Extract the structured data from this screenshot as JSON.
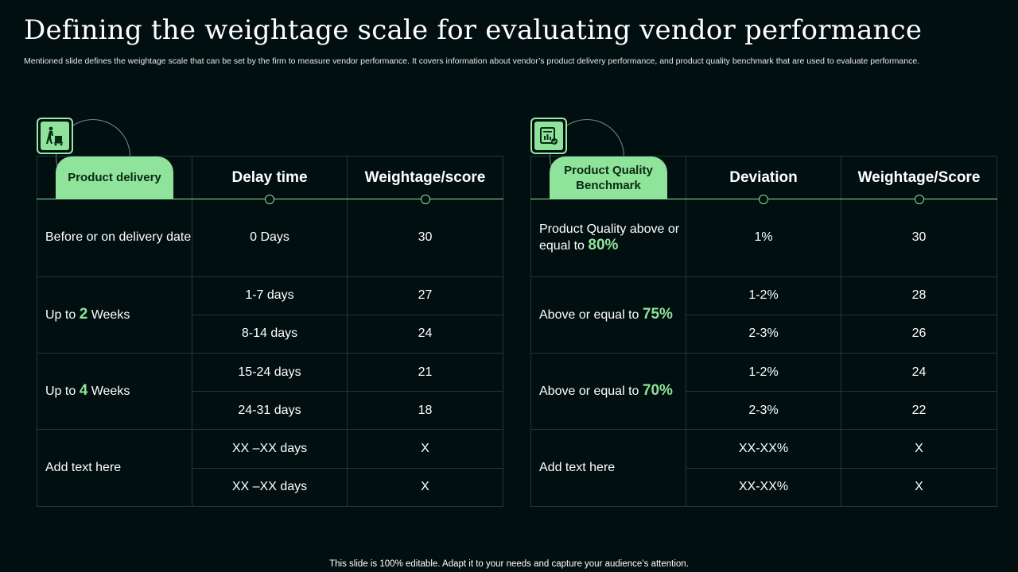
{
  "title": "Defining the weightage scale for evaluating vendor performance",
  "subtitle": "Mentioned slide defines the weightage scale that can be set by the firm to measure vendor performance. It covers information about vendor’s product delivery performance, and product quality benchmark that are used to evaluate performance.",
  "footer": "This slide is 100% editable. Adapt it to your needs and capture your audience’s attention.",
  "colors": {
    "background": "#020f10",
    "accent": "#8fe39a",
    "grid": "#1e3836"
  },
  "delivery": {
    "icon": "delivery-worker-icon",
    "header": {
      "category": "Product delivery",
      "col2": "Delay time",
      "col3": "Weightage/score"
    },
    "row1": {
      "label": "Before or on delivery date",
      "col2": "0 Days",
      "col3": "30"
    },
    "group2": {
      "label_pre": "Up to ",
      "label_num": "2",
      "label_post": " Weeks",
      "rows": [
        {
          "col2": "1-7 days",
          "col3": "27"
        },
        {
          "col2": "8-14 days",
          "col3": "24"
        }
      ]
    },
    "group3": {
      "label_pre": "Up to ",
      "label_num": "4",
      "label_post": " Weeks",
      "rows": [
        {
          "col2": "15-24 days",
          "col3": "21"
        },
        {
          "col2": "24-31 days",
          "col3": "18"
        }
      ]
    },
    "group4": {
      "label": "Add text here",
      "rows": [
        {
          "col2": "XX –XX days",
          "col3": "X"
        },
        {
          "col2": "XX –XX days",
          "col3": "X"
        }
      ]
    }
  },
  "quality": {
    "icon": "quality-report-icon",
    "header": {
      "category": "Product Quality Benchmark",
      "col2": "Deviation",
      "col3": "Weightage/Score"
    },
    "row1": {
      "label_pre": "Product Quality  above or equal to ",
      "label_num": "80%",
      "col2": "1%",
      "col3": "30"
    },
    "group2": {
      "label_pre": "Above or equal to ",
      "label_num": "75%",
      "rows": [
        {
          "col2": "1-2%",
          "col3": "28"
        },
        {
          "col2": "2-3%",
          "col3": "26"
        }
      ]
    },
    "group3": {
      "label_pre": "Above or equal to ",
      "label_num": "70%",
      "rows": [
        {
          "col2": "1-2%",
          "col3": "24"
        },
        {
          "col2": "2-3%",
          "col3": "22"
        }
      ]
    },
    "group4": {
      "label": "Add text here",
      "rows": [
        {
          "col2": "XX-XX%",
          "col3": "X"
        },
        {
          "col2": "XX-XX%",
          "col3": "X"
        }
      ]
    }
  }
}
